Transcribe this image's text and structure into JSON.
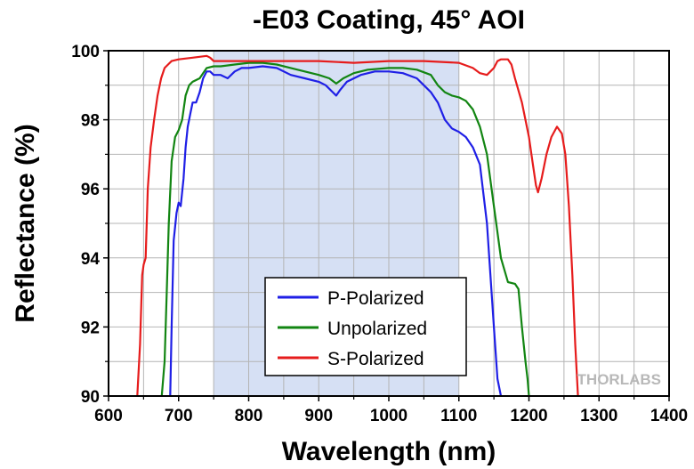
{
  "chart_data": {
    "type": "line",
    "title": "-E03 Coating, 45° AOI",
    "xlabel": "Wavelength (nm)",
    "ylabel": "Reflectance (%)",
    "xlim": [
      600,
      1400
    ],
    "ylim": [
      90,
      100
    ],
    "xticks": [
      600,
      700,
      800,
      900,
      1000,
      1100,
      1200,
      1300,
      1400
    ],
    "yticks": [
      90,
      92,
      94,
      96,
      98,
      100
    ],
    "grid": true,
    "legend_position": "bottom-center",
    "highlight_band": {
      "x_start": 750,
      "x_end": 1100,
      "color": "#d6e0f4"
    },
    "watermark": "THORLABS",
    "series": [
      {
        "name": "P-Polarized",
        "color": "#1f1fe6",
        "x": [
          688,
          690,
          693,
          697,
          700,
          703,
          707,
          710,
          713,
          717,
          720,
          725,
          730,
          735,
          740,
          745,
          750,
          760,
          770,
          780,
          790,
          800,
          820,
          840,
          860,
          880,
          900,
          910,
          920,
          925,
          930,
          940,
          960,
          980,
          1000,
          1020,
          1040,
          1050,
          1060,
          1070,
          1080,
          1090,
          1100,
          1110,
          1120,
          1130,
          1140,
          1145,
          1150,
          1155,
          1160
        ],
        "values": [
          90,
          92,
          94.5,
          95.3,
          95.6,
          95.5,
          96.3,
          97.2,
          97.8,
          98.2,
          98.5,
          98.5,
          98.8,
          99.2,
          99.4,
          99.4,
          99.3,
          99.3,
          99.2,
          99.4,
          99.5,
          99.5,
          99.55,
          99.5,
          99.3,
          99.2,
          99.1,
          99.0,
          98.8,
          98.7,
          98.85,
          99.1,
          99.3,
          99.4,
          99.4,
          99.35,
          99.2,
          99.0,
          98.8,
          98.5,
          98.0,
          97.75,
          97.65,
          97.5,
          97.2,
          96.7,
          95.0,
          93.5,
          92.0,
          90.5,
          90
        ]
      },
      {
        "name": "Unpolarized",
        "color": "#128512",
        "x": [
          676,
          680,
          683,
          686,
          690,
          695,
          700,
          705,
          710,
          715,
          720,
          730,
          740,
          750,
          760,
          780,
          800,
          820,
          840,
          860,
          880,
          900,
          915,
          925,
          935,
          950,
          970,
          1000,
          1020,
          1040,
          1060,
          1070,
          1080,
          1090,
          1100,
          1110,
          1120,
          1130,
          1140,
          1150,
          1160,
          1170,
          1180,
          1185,
          1190,
          1195,
          1198,
          1200
        ],
        "values": [
          90,
          91,
          93,
          95,
          96.8,
          97.5,
          97.7,
          98,
          98.7,
          99.0,
          99.1,
          99.2,
          99.5,
          99.55,
          99.55,
          99.6,
          99.65,
          99.65,
          99.6,
          99.5,
          99.4,
          99.3,
          99.2,
          99.05,
          99.2,
          99.35,
          99.45,
          99.5,
          99.5,
          99.45,
          99.3,
          99.0,
          98.8,
          98.7,
          98.65,
          98.55,
          98.3,
          97.8,
          97.0,
          95.5,
          94.0,
          93.3,
          93.25,
          93.1,
          92.0,
          91.0,
          90.5,
          90
        ]
      },
      {
        "name": "S-Polarized",
        "color": "#e61c1c",
        "x": [
          641,
          645,
          648,
          650,
          653,
          656,
          660,
          665,
          670,
          675,
          680,
          685,
          690,
          700,
          720,
          740,
          745,
          750,
          760,
          800,
          850,
          900,
          950,
          1000,
          1050,
          1100,
          1120,
          1130,
          1140,
          1150,
          1155,
          1160,
          1170,
          1175,
          1180,
          1190,
          1200,
          1205,
          1210,
          1213,
          1218,
          1225,
          1232,
          1240,
          1247,
          1252,
          1257,
          1262,
          1266,
          1270
        ],
        "values": [
          90,
          91.5,
          93.5,
          93.8,
          94.0,
          96.0,
          97.2,
          98.0,
          98.7,
          99.2,
          99.5,
          99.6,
          99.7,
          99.75,
          99.8,
          99.85,
          99.8,
          99.7,
          99.7,
          99.7,
          99.7,
          99.7,
          99.65,
          99.7,
          99.7,
          99.65,
          99.5,
          99.35,
          99.3,
          99.5,
          99.7,
          99.75,
          99.75,
          99.6,
          99.2,
          98.5,
          97.5,
          96.8,
          96.1,
          95.9,
          96.3,
          97.0,
          97.5,
          97.8,
          97.6,
          97.0,
          95.5,
          93.5,
          91.5,
          90
        ]
      }
    ]
  }
}
